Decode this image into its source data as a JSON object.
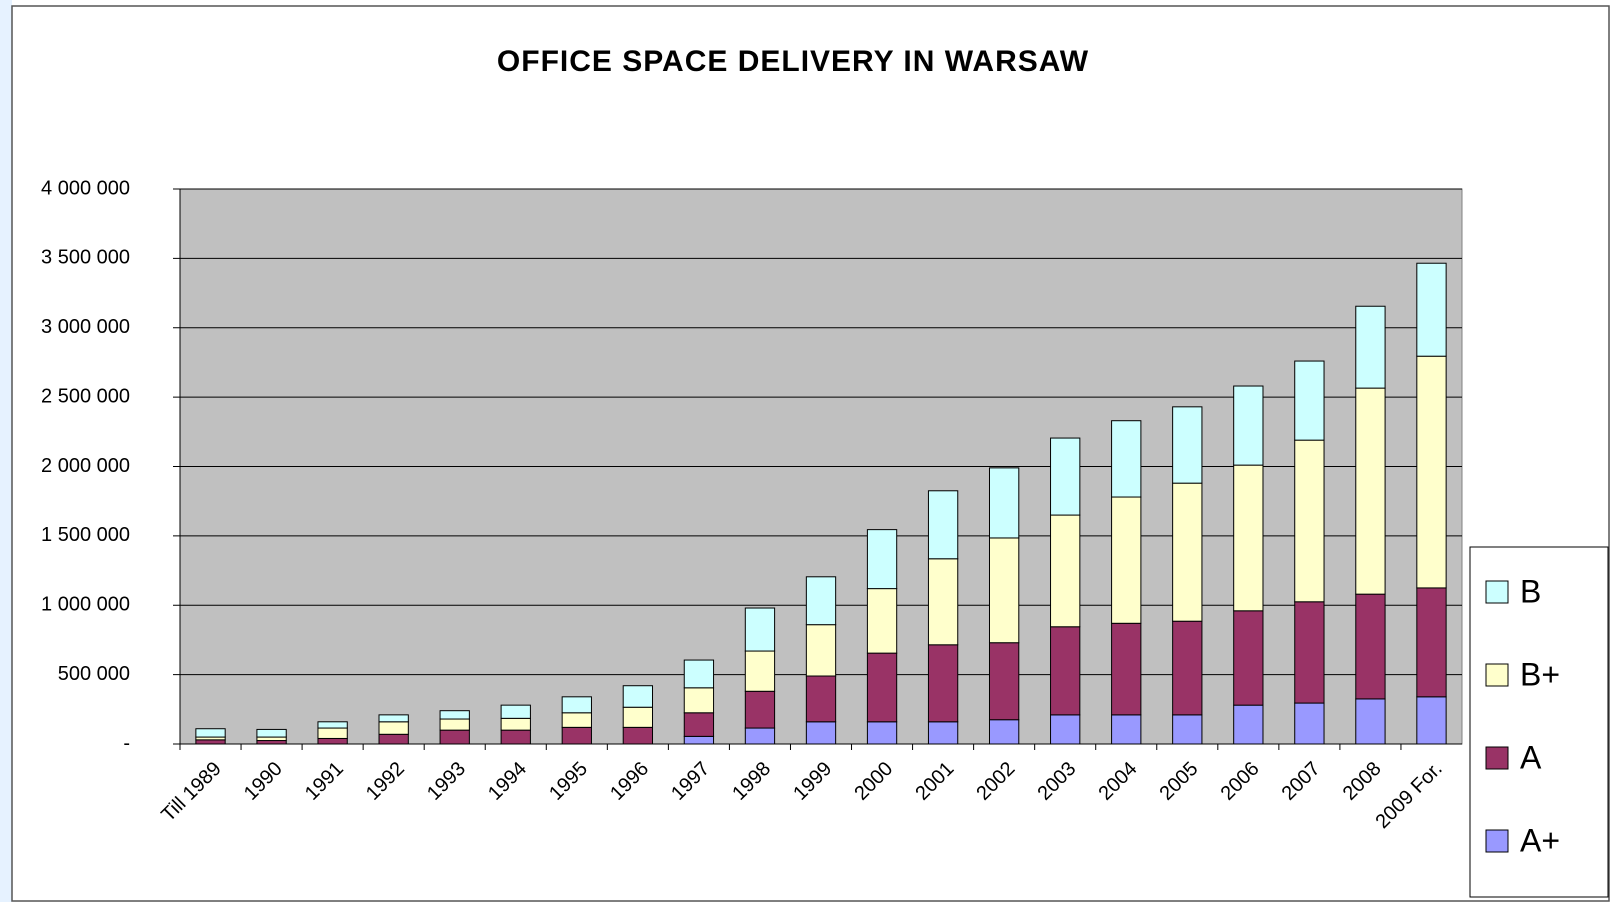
{
  "chart_data": {
    "type": "stacked_bar",
    "title": "OFFICE SPACE DELIVERY IN WARSAW",
    "categories": [
      "Till 1989",
      "1990",
      "1991",
      "1992",
      "1993",
      "1994",
      "1995",
      "1996",
      "1997",
      "1998",
      "1999",
      "2000",
      "2001",
      "2002",
      "2003",
      "2004",
      "2005",
      "2006",
      "2007",
      "2008",
      "2009 For."
    ],
    "series": [
      {
        "name": "A+",
        "color": "#9999ff",
        "values": [
          0,
          0,
          0,
          0,
          0,
          0,
          0,
          0,
          55000,
          115000,
          160000,
          160000,
          160000,
          175000,
          210000,
          210000,
          210000,
          280000,
          295000,
          325000,
          340000
        ]
      },
      {
        "name": "A",
        "color": "#993366",
        "values": [
          30000,
          25000,
          40000,
          70000,
          100000,
          100000,
          120000,
          120000,
          170000,
          265000,
          330000,
          495000,
          555000,
          555000,
          635000,
          660000,
          675000,
          680000,
          730000,
          755000,
          785000
        ]
      },
      {
        "name": "B+",
        "color": "#ffffcc",
        "values": [
          20000,
          25000,
          75000,
          90000,
          80000,
          85000,
          105000,
          145000,
          180000,
          290000,
          370000,
          465000,
          620000,
          755000,
          805000,
          910000,
          995000,
          1050000,
          1165000,
          1485000,
          1670000
        ]
      },
      {
        "name": "B",
        "color": "#ccffff",
        "values": [
          60000,
          55000,
          45000,
          50000,
          60000,
          95000,
          115000,
          155000,
          200000,
          310000,
          345000,
          425000,
          490000,
          505000,
          555000,
          550000,
          550000,
          570000,
          570000,
          590000,
          670000
        ]
      }
    ],
    "ylim": [
      0,
      4000000
    ],
    "yticks": [
      {
        "value": 0,
        "label": "-"
      },
      {
        "value": 500000,
        "label": "500 000"
      },
      {
        "value": 1000000,
        "label": "1 000 000"
      },
      {
        "value": 1500000,
        "label": "1 500 000"
      },
      {
        "value": 2000000,
        "label": "2 000 000"
      },
      {
        "value": 2500000,
        "label": "2 500 000"
      },
      {
        "value": 3000000,
        "label": "3 000 000"
      },
      {
        "value": 3500000,
        "label": "3 500 000"
      },
      {
        "value": 4000000,
        "label": "4 000 000"
      }
    ],
    "grid": true,
    "legend": "right",
    "plot_background": "#c0c0c0"
  }
}
